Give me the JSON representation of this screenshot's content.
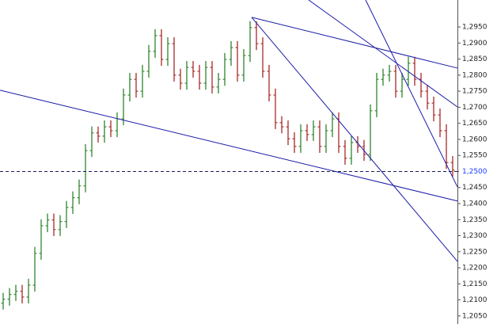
{
  "chart_data": {
    "type": "ohlc",
    "xlim": [
      -0.5,
      71.75
    ],
    "ylim": [
      1.2025,
      1.3034
    ],
    "yticks": [
      {
        "value": 1.205,
        "label": "1,2050"
      },
      {
        "value": 1.21,
        "label": "1,2100"
      },
      {
        "value": 1.215,
        "label": "1,2150"
      },
      {
        "value": 1.22,
        "label": "1,2200"
      },
      {
        "value": 1.225,
        "label": "1,2250"
      },
      {
        "value": 1.23,
        "label": "1,2300"
      },
      {
        "value": 1.235,
        "label": "1,2350"
      },
      {
        "value": 1.24,
        "label": "1,2400"
      },
      {
        "value": 1.245,
        "label": "1,2450"
      },
      {
        "value": 1.25,
        "label": "1,2500"
      },
      {
        "value": 1.255,
        "label": "1,2550"
      },
      {
        "value": 1.26,
        "label": "1,2600"
      },
      {
        "value": 1.265,
        "label": "1,2650"
      },
      {
        "value": 1.27,
        "label": "1,2700"
      },
      {
        "value": 1.275,
        "label": "1,2750"
      },
      {
        "value": 1.28,
        "label": "1,2800"
      },
      {
        "value": 1.285,
        "label": "1,2850"
      },
      {
        "value": 1.29,
        "label": "1,2900"
      },
      {
        "value": 1.295,
        "label": "1,2950"
      }
    ],
    "current_price": {
      "value": 1.25,
      "label": "1,2500",
      "color": "#1a3cff"
    },
    "up_color": "#1f7a1f",
    "down_color": "#a01818",
    "open": [
      1.209,
      1.2102,
      1.2117,
      1.2127,
      1.2109,
      1.2146,
      1.2245,
      1.2331,
      1.2349,
      1.2319,
      1.2344,
      1.2388,
      1.2418,
      1.2455,
      1.2565,
      1.262,
      1.261,
      1.2639,
      1.2627,
      1.2664,
      1.2738,
      1.2787,
      1.275,
      1.2812,
      1.2874,
      1.2923,
      1.2849,
      1.2898,
      1.28,
      1.2775,
      1.2824,
      1.2812,
      1.2775,
      1.2824,
      1.2763,
      1.2787,
      1.2849,
      1.2886,
      1.28,
      1.2861,
      1.2948,
      1.2898,
      1.2812,
      1.2738,
      1.2652,
      1.2639,
      1.2602,
      1.2578,
      1.2627,
      1.2615,
      1.2639,
      1.2578,
      1.2627,
      1.2664,
      1.2578,
      1.2541,
      1.259,
      1.2578,
      1.2553,
      1.2689,
      1.2787,
      1.28,
      1.2812,
      1.275,
      1.2787,
      1.2837,
      1.2787,
      1.275,
      1.2713,
      1.2676,
      1.2627,
      1.2528
    ],
    "high": [
      1.2122,
      1.2137,
      1.2147,
      1.2147,
      1.2166,
      1.2265,
      1.2351,
      1.2369,
      1.2369,
      1.2364,
      1.2408,
      1.2438,
      1.2475,
      1.2585,
      1.264,
      1.264,
      1.2659,
      1.2659,
      1.2684,
      1.2758,
      1.2807,
      1.2807,
      1.2832,
      1.2894,
      1.2943,
      1.2943,
      1.2918,
      1.2918,
      1.282,
      1.2844,
      1.2844,
      1.2832,
      1.2844,
      1.2844,
      1.2807,
      1.2869,
      1.2906,
      1.2906,
      1.2881,
      1.2968,
      1.2968,
      1.2918,
      1.2832,
      1.2758,
      1.2672,
      1.2659,
      1.2622,
      1.2647,
      1.2647,
      1.2659,
      1.2659,
      1.2647,
      1.2684,
      1.2684,
      1.2598,
      1.261,
      1.261,
      1.2598,
      1.2709,
      1.2807,
      1.282,
      1.2832,
      1.2832,
      1.2807,
      1.2857,
      1.2857,
      1.2807,
      1.277,
      1.2733,
      1.2696,
      1.2647,
      1.2548
    ],
    "low": [
      1.207,
      1.2082,
      1.2097,
      1.2089,
      1.2089,
      1.2126,
      1.2225,
      1.2311,
      1.2299,
      1.2299,
      1.2324,
      1.2368,
      1.2398,
      1.2435,
      1.2545,
      1.259,
      1.259,
      1.2607,
      1.2607,
      1.2644,
      1.2718,
      1.273,
      1.273,
      1.2792,
      1.2854,
      1.2829,
      1.2829,
      1.278,
      1.2755,
      1.2755,
      1.2792,
      1.2755,
      1.2755,
      1.2743,
      1.2743,
      1.2767,
      1.2829,
      1.278,
      1.278,
      1.2841,
      1.2878,
      1.2792,
      1.2718,
      1.2632,
      1.2619,
      1.2582,
      1.2558,
      1.2558,
      1.2595,
      1.2595,
      1.2558,
      1.2558,
      1.2607,
      1.2558,
      1.2521,
      1.2521,
      1.2558,
      1.2533,
      1.2533,
      1.2669,
      1.2767,
      1.278,
      1.273,
      1.273,
      1.2767,
      1.2767,
      1.273,
      1.2693,
      1.2656,
      1.2607,
      1.2508,
      1.2484
    ],
    "close": [
      1.2102,
      1.2117,
      1.2127,
      1.2109,
      1.2146,
      1.2245,
      1.2331,
      1.2349,
      1.2319,
      1.2344,
      1.2388,
      1.2418,
      1.2455,
      1.2565,
      1.262,
      1.261,
      1.2639,
      1.2627,
      1.2664,
      1.2738,
      1.2787,
      1.275,
      1.2812,
      1.2874,
      1.2923,
      1.2849,
      1.2898,
      1.28,
      1.2775,
      1.2824,
      1.2812,
      1.2775,
      1.2824,
      1.2763,
      1.2787,
      1.2849,
      1.2886,
      1.28,
      1.2861,
      1.2948,
      1.2898,
      1.2812,
      1.2738,
      1.2652,
      1.2639,
      1.2602,
      1.2578,
      1.2627,
      1.2615,
      1.2639,
      1.2578,
      1.2627,
      1.2664,
      1.2578,
      1.2541,
      1.259,
      1.2578,
      1.2553,
      1.2689,
      1.2787,
      1.28,
      1.2812,
      1.275,
      1.2787,
      1.2837,
      1.2787,
      1.275,
      1.2713,
      1.2676,
      1.2627,
      1.2528,
      1.2504
    ],
    "trend_lines": [
      {
        "color": "#1a1aa8",
        "x": [
          -0.5,
          71.75
        ],
        "y": [
          1.2753,
          1.2408
        ]
      },
      {
        "color": "#1a1aa8",
        "x": [
          39.25,
          71.75
        ],
        "y": [
          1.298,
          1.2822
        ]
      },
      {
        "color": "#1a1aa8",
        "x": [
          39.25,
          71.75
        ],
        "y": [
          1.298,
          1.222
        ]
      },
      {
        "color": "#1a1aa8",
        "x": [
          48.25,
          71.75
        ],
        "y": [
          1.3034,
          1.2701
        ]
      },
      {
        "color": "#1a1aa8",
        "x": [
          57.25,
          71.75
        ],
        "y": [
          1.3034,
          1.2452
        ]
      }
    ]
  }
}
